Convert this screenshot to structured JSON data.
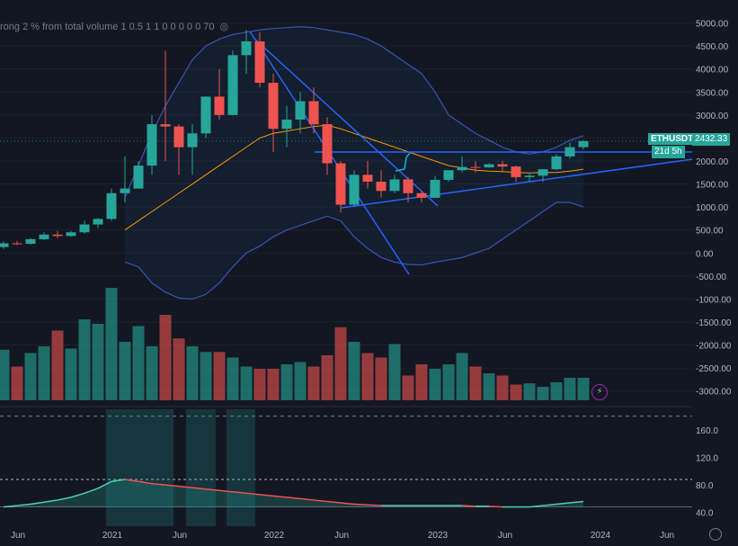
{
  "indicator_label": "rong 2 % from total volume 1 0.5 1 1 0 0 0 0 0 70",
  "symbol": "ETHUSDT",
  "last_price": "2432.33",
  "countdown": "21d 5h",
  "price_axis": [
    "5000.00",
    "4500.00",
    "4000.00",
    "3500.00",
    "3000.00",
    "2500.00",
    "2000.00",
    "1500.00",
    "1000.00",
    "500.00",
    "0.00",
    "-500.00",
    "-1000.00",
    "-1500.00",
    "-2000.00",
    "-2500.00",
    "-3000.00"
  ],
  "osc_axis": [
    "160.0",
    "120.0",
    "80.0",
    "40.0"
  ],
  "time_axis": [
    "Jun",
    "2021",
    "Jun",
    "2022",
    "Jun",
    "2023",
    "Jun",
    "2024",
    "Jun"
  ],
  "colors": {
    "up": "#26a69a",
    "down": "#ef5350",
    "bands": "#3f51b5",
    "basis": "#ff9800",
    "trend": "#2962ff"
  },
  "chart_data": {
    "type": "candlestick",
    "ylim": [
      -3300,
      5500
    ],
    "candles": [
      {
        "o": 130,
        "h": 250,
        "l": 90,
        "c": 210
      },
      {
        "o": 210,
        "h": 260,
        "l": 170,
        "c": 200
      },
      {
        "o": 200,
        "h": 320,
        "l": 180,
        "c": 300
      },
      {
        "o": 300,
        "h": 450,
        "l": 280,
        "c": 400
      },
      {
        "o": 400,
        "h": 480,
        "l": 320,
        "c": 370
      },
      {
        "o": 370,
        "h": 480,
        "l": 350,
        "c": 450
      },
      {
        "o": 450,
        "h": 700,
        "l": 420,
        "c": 620
      },
      {
        "o": 620,
        "h": 760,
        "l": 540,
        "c": 740
      },
      {
        "o": 740,
        "h": 1400,
        "l": 700,
        "c": 1300
      },
      {
        "o": 1300,
        "h": 2100,
        "l": 1100,
        "c": 1400
      },
      {
        "o": 1400,
        "h": 2000,
        "l": 1400,
        "c": 1900
      },
      {
        "o": 1900,
        "h": 3000,
        "l": 1700,
        "c": 2800
      },
      {
        "o": 2800,
        "h": 4400,
        "l": 2000,
        "c": 2750
      },
      {
        "o": 2750,
        "h": 2800,
        "l": 1700,
        "c": 2300
      },
      {
        "o": 2300,
        "h": 2800,
        "l": 1700,
        "c": 2600
      },
      {
        "o": 2600,
        "h": 3400,
        "l": 2500,
        "c": 3400
      },
      {
        "o": 3400,
        "h": 4000,
        "l": 2900,
        "c": 3000
      },
      {
        "o": 3000,
        "h": 4400,
        "l": 3000,
        "c": 4300
      },
      {
        "o": 4300,
        "h": 4850,
        "l": 3900,
        "c": 4600
      },
      {
        "o": 4600,
        "h": 4800,
        "l": 3600,
        "c": 3700
      },
      {
        "o": 3700,
        "h": 3900,
        "l": 2200,
        "c": 2700
      },
      {
        "o": 2700,
        "h": 3200,
        "l": 2300,
        "c": 2900
      },
      {
        "o": 2900,
        "h": 3500,
        "l": 2600,
        "c": 3300
      },
      {
        "o": 3300,
        "h": 3600,
        "l": 2600,
        "c": 2800
      },
      {
        "o": 2800,
        "h": 2950,
        "l": 1700,
        "c": 1950
      },
      {
        "o": 1950,
        "h": 2000,
        "l": 880,
        "c": 1050
      },
      {
        "o": 1050,
        "h": 1800,
        "l": 1000,
        "c": 1700
      },
      {
        "o": 1700,
        "h": 2000,
        "l": 1400,
        "c": 1550
      },
      {
        "o": 1550,
        "h": 1800,
        "l": 1200,
        "c": 1350
      },
      {
        "o": 1350,
        "h": 1700,
        "l": 1300,
        "c": 1600
      },
      {
        "o": 1600,
        "h": 1650,
        "l": 1100,
        "c": 1300
      },
      {
        "o": 1300,
        "h": 1350,
        "l": 1100,
        "c": 1200
      },
      {
        "o": 1200,
        "h": 1680,
        "l": 1200,
        "c": 1590
      },
      {
        "o": 1590,
        "h": 1750,
        "l": 1550,
        "c": 1800
      },
      {
        "o": 1800,
        "h": 2100,
        "l": 1750,
        "c": 1870
      },
      {
        "o": 1870,
        "h": 2000,
        "l": 1750,
        "c": 1860
      },
      {
        "o": 1860,
        "h": 1950,
        "l": 1850,
        "c": 1930
      },
      {
        "o": 1930,
        "h": 2000,
        "l": 1750,
        "c": 1880
      },
      {
        "o": 1880,
        "h": 1900,
        "l": 1550,
        "c": 1650
      },
      {
        "o": 1650,
        "h": 1750,
        "l": 1550,
        "c": 1680
      },
      {
        "o": 1680,
        "h": 1800,
        "l": 1550,
        "c": 1820
      },
      {
        "o": 1820,
        "h": 2150,
        "l": 1800,
        "c": 2100
      },
      {
        "o": 2100,
        "h": 2400,
        "l": 2050,
        "c": 2300
      },
      {
        "o": 2300,
        "h": 2450,
        "l": 2250,
        "c": 2432
      }
    ],
    "volume": [
      0.45,
      0.3,
      0.42,
      0.48,
      0.62,
      0.46,
      0.72,
      0.68,
      1.0,
      0.52,
      0.66,
      0.48,
      0.76,
      0.55,
      0.48,
      0.43,
      0.43,
      0.38,
      0.3,
      0.28,
      0.28,
      0.32,
      0.34,
      0.3,
      0.4,
      0.65,
      0.52,
      0.42,
      0.38,
      0.5,
      0.22,
      0.32,
      0.28,
      0.32,
      0.42,
      0.3,
      0.24,
      0.22,
      0.14,
      0.15,
      0.12,
      0.16,
      0.2,
      0.2
    ],
    "upper_band": [
      null,
      null,
      null,
      null,
      null,
      null,
      null,
      null,
      null,
      1200,
      1900,
      2600,
      3200,
      3700,
      4200,
      4500,
      4650,
      4750,
      4800,
      4850,
      4880,
      4900,
      4920,
      4900,
      4850,
      4800,
      4750,
      4650,
      4500,
      4300,
      4100,
      3900,
      3500,
      3000,
      2800,
      2600,
      2450,
      2300,
      2200,
      2150,
      2200,
      2300,
      2450,
      2550
    ],
    "lower_band": [
      null,
      null,
      null,
      null,
      null,
      null,
      null,
      null,
      null,
      -200,
      -300,
      -650,
      -850,
      -980,
      -1000,
      -900,
      -650,
      -300,
      0,
      150,
      350,
      500,
      600,
      700,
      800,
      700,
      350,
      100,
      -100,
      -200,
      -250,
      -260,
      -200,
      -150,
      -100,
      0,
      100,
      300,
      500,
      700,
      900,
      1100,
      1100,
      1000
    ],
    "basis": [
      null,
      null,
      null,
      null,
      null,
      null,
      null,
      null,
      null,
      500,
      700,
      900,
      1100,
      1300,
      1500,
      1700,
      1900,
      2100,
      2300,
      2500,
      2600,
      2650,
      2700,
      2750,
      2780,
      2700,
      2600,
      2500,
      2400,
      2300,
      2200,
      2100,
      2000,
      1900,
      1850,
      1800,
      1780,
      1770,
      1750,
      1740,
      1750,
      1750,
      1780,
      1820
    ],
    "osc": [
      48,
      50,
      52,
      55,
      58,
      62,
      68,
      75,
      85,
      88,
      85,
      82,
      80,
      78,
      76,
      74,
      72,
      70,
      68,
      66,
      64,
      62,
      60,
      58,
      56,
      54,
      52,
      51,
      50,
      50,
      50,
      50,
      50,
      50,
      50,
      49,
      49,
      48,
      48,
      48,
      50,
      52,
      54,
      56
    ],
    "osc_ylim": [
      20,
      190
    ]
  }
}
